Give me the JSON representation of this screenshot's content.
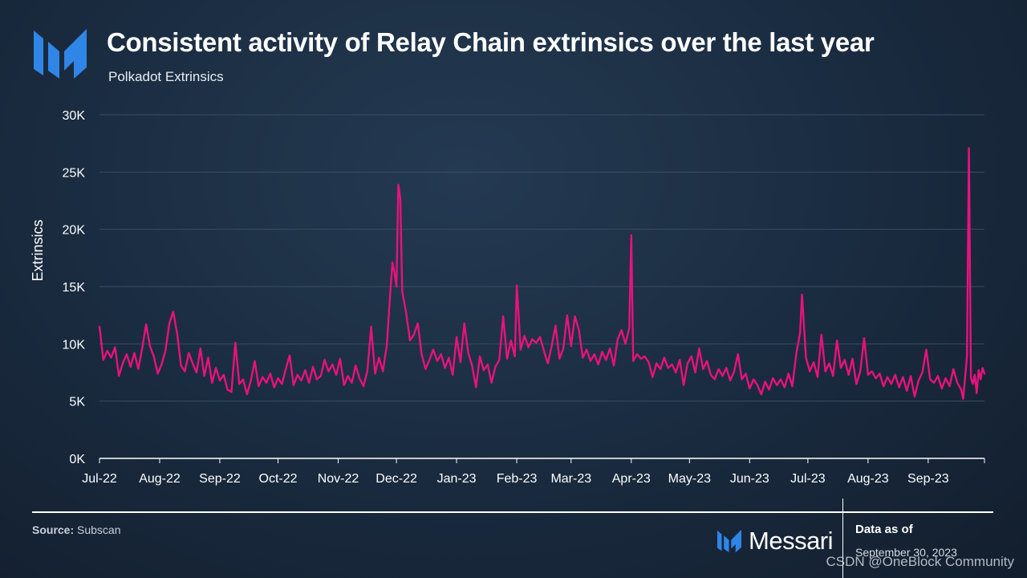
{
  "header": {
    "title": "Consistent activity of Relay Chain extrinsics over the last year",
    "subtitle": "Polkadot Extrinsics"
  },
  "footer": {
    "source_label": "Source:",
    "source_value": "Subscan",
    "brand": "Messari",
    "data_as_of_label": "Data as of",
    "data_as_of_date": "September 30, 2023",
    "watermark": "CSDN @OneBlock Community"
  },
  "colors": {
    "line": "#e8127c",
    "grid": "#3b4d62",
    "logo": "#2f86e6"
  },
  "chart_data": {
    "type": "line",
    "ylabel": "Extrinsics",
    "xlabel": "",
    "ylim": [
      0,
      30000
    ],
    "yticks": [
      0,
      5000,
      10000,
      15000,
      20000,
      25000,
      30000
    ],
    "ytick_labels": [
      "0K",
      "5K",
      "10K",
      "15K",
      "20K",
      "25K",
      "30K"
    ],
    "xlim": [
      "2022-07-01",
      "2023-09-30"
    ],
    "xtick_labels": [
      "Jul-22",
      "Aug-22",
      "Sep-22",
      "Oct-22",
      "Nov-22",
      "Dec-22",
      "Jan-23",
      "Feb-23",
      "Mar-23",
      "Apr-23",
      "May-23",
      "Jun-23",
      "Jul-23",
      "Aug-23",
      "Sep-23"
    ],
    "xtick_dates": [
      "2022-07-01",
      "2022-08-01",
      "2022-09-01",
      "2022-10-01",
      "2022-11-01",
      "2022-12-01",
      "2023-01-01",
      "2023-02-01",
      "2023-03-01",
      "2023-04-01",
      "2023-05-01",
      "2023-06-01",
      "2023-07-01",
      "2023-08-01",
      "2023-09-01"
    ],
    "grid": true,
    "series": [
      {
        "points": [
          [
            "2022-07-01",
            11500
          ],
          [
            "2022-07-03",
            8600
          ],
          [
            "2022-07-05",
            9400
          ],
          [
            "2022-07-07",
            8800
          ],
          [
            "2022-07-09",
            9700
          ],
          [
            "2022-07-11",
            7200
          ],
          [
            "2022-07-13",
            8300
          ],
          [
            "2022-07-15",
            9100
          ],
          [
            "2022-07-17",
            8000
          ],
          [
            "2022-07-19",
            9200
          ],
          [
            "2022-07-21",
            7800
          ],
          [
            "2022-07-23",
            9600
          ],
          [
            "2022-07-25",
            11700
          ],
          [
            "2022-07-27",
            9800
          ],
          [
            "2022-07-29",
            8900
          ],
          [
            "2022-07-31",
            7400
          ],
          [
            "2022-08-02",
            8200
          ],
          [
            "2022-08-04",
            9400
          ],
          [
            "2022-08-06",
            11800
          ],
          [
            "2022-08-08",
            12800
          ],
          [
            "2022-08-10",
            10900
          ],
          [
            "2022-08-12",
            8100
          ],
          [
            "2022-08-14",
            7600
          ],
          [
            "2022-08-16",
            9200
          ],
          [
            "2022-08-18",
            8300
          ],
          [
            "2022-08-20",
            7500
          ],
          [
            "2022-08-22",
            9600
          ],
          [
            "2022-08-24",
            7200
          ],
          [
            "2022-08-26",
            8800
          ],
          [
            "2022-08-28",
            6600
          ],
          [
            "2022-08-30",
            7900
          ],
          [
            "2022-09-01",
            6800
          ],
          [
            "2022-09-03",
            7300
          ],
          [
            "2022-09-05",
            6000
          ],
          [
            "2022-09-07",
            5800
          ],
          [
            "2022-09-09",
            10100
          ],
          [
            "2022-09-11",
            6500
          ],
          [
            "2022-09-13",
            6900
          ],
          [
            "2022-09-15",
            5600
          ],
          [
            "2022-09-17",
            6800
          ],
          [
            "2022-09-19",
            8500
          ],
          [
            "2022-09-21",
            6300
          ],
          [
            "2022-09-23",
            7100
          ],
          [
            "2022-09-25",
            6600
          ],
          [
            "2022-09-27",
            7400
          ],
          [
            "2022-09-29",
            6200
          ],
          [
            "2022-10-01",
            7000
          ],
          [
            "2022-10-03",
            6500
          ],
          [
            "2022-10-05",
            7800
          ],
          [
            "2022-10-07",
            9000
          ],
          [
            "2022-10-09",
            6400
          ],
          [
            "2022-10-11",
            7300
          ],
          [
            "2022-10-13",
            6800
          ],
          [
            "2022-10-15",
            7700
          ],
          [
            "2022-10-17",
            6600
          ],
          [
            "2022-10-19",
            8000
          ],
          [
            "2022-10-21",
            6900
          ],
          [
            "2022-10-23",
            7200
          ],
          [
            "2022-10-25",
            8600
          ],
          [
            "2022-10-27",
            7600
          ],
          [
            "2022-10-29",
            8200
          ],
          [
            "2022-10-31",
            7300
          ],
          [
            "2022-11-02",
            8700
          ],
          [
            "2022-11-04",
            6400
          ],
          [
            "2022-11-06",
            7200
          ],
          [
            "2022-11-08",
            6600
          ],
          [
            "2022-11-10",
            8100
          ],
          [
            "2022-11-12",
            7000
          ],
          [
            "2022-11-14",
            6300
          ],
          [
            "2022-11-16",
            7600
          ],
          [
            "2022-11-18",
            11500
          ],
          [
            "2022-11-20",
            7400
          ],
          [
            "2022-11-22",
            8800
          ],
          [
            "2022-11-24",
            7600
          ],
          [
            "2022-11-26",
            9800
          ],
          [
            "2022-11-28",
            14900
          ],
          [
            "2022-11-29",
            17100
          ],
          [
            "2022-11-30",
            16200
          ],
          [
            "2022-12-01",
            15000
          ],
          [
            "2022-12-02",
            23900
          ],
          [
            "2022-12-03",
            22700
          ],
          [
            "2022-12-04",
            14600
          ],
          [
            "2022-12-06",
            12700
          ],
          [
            "2022-12-08",
            10300
          ],
          [
            "2022-12-10",
            10800
          ],
          [
            "2022-12-12",
            11800
          ],
          [
            "2022-12-14",
            9100
          ],
          [
            "2022-12-16",
            7800
          ],
          [
            "2022-12-18",
            8600
          ],
          [
            "2022-12-20",
            9500
          ],
          [
            "2022-12-22",
            8500
          ],
          [
            "2022-12-24",
            9100
          ],
          [
            "2022-12-26",
            7900
          ],
          [
            "2022-12-28",
            8800
          ],
          [
            "2022-12-30",
            7300
          ],
          [
            "2023-01-01",
            10600
          ],
          [
            "2023-01-03",
            8400
          ],
          [
            "2023-01-05",
            11800
          ],
          [
            "2023-01-07",
            9200
          ],
          [
            "2023-01-09",
            8100
          ],
          [
            "2023-01-11",
            6200
          ],
          [
            "2023-01-13",
            8900
          ],
          [
            "2023-01-15",
            7700
          ],
          [
            "2023-01-17",
            8200
          ],
          [
            "2023-01-19",
            6600
          ],
          [
            "2023-01-21",
            8000
          ],
          [
            "2023-01-23",
            8600
          ],
          [
            "2023-01-25",
            12400
          ],
          [
            "2023-01-27",
            8700
          ],
          [
            "2023-01-29",
            10300
          ],
          [
            "2023-01-31",
            8900
          ],
          [
            "2023-02-01",
            15100
          ],
          [
            "2023-02-03",
            9500
          ],
          [
            "2023-02-05",
            10700
          ],
          [
            "2023-02-07",
            9700
          ],
          [
            "2023-02-09",
            10400
          ],
          [
            "2023-02-11",
            10100
          ],
          [
            "2023-02-13",
            10600
          ],
          [
            "2023-02-15",
            9400
          ],
          [
            "2023-02-17",
            8300
          ],
          [
            "2023-02-19",
            9800
          ],
          [
            "2023-02-21",
            11600
          ],
          [
            "2023-02-23",
            8700
          ],
          [
            "2023-02-25",
            9600
          ],
          [
            "2023-02-27",
            12500
          ],
          [
            "2023-03-01",
            9800
          ],
          [
            "2023-03-03",
            12400
          ],
          [
            "2023-03-05",
            11200
          ],
          [
            "2023-03-07",
            8800
          ],
          [
            "2023-03-09",
            9500
          ],
          [
            "2023-03-11",
            8500
          ],
          [
            "2023-03-13",
            9100
          ],
          [
            "2023-03-15",
            8200
          ],
          [
            "2023-03-17",
            9300
          ],
          [
            "2023-03-19",
            8600
          ],
          [
            "2023-03-21",
            9600
          ],
          [
            "2023-03-23",
            8100
          ],
          [
            "2023-03-25",
            10400
          ],
          [
            "2023-03-27",
            11200
          ],
          [
            "2023-03-29",
            10000
          ],
          [
            "2023-03-31",
            11400
          ],
          [
            "2023-04-01",
            19500
          ],
          [
            "2023-04-02",
            8500
          ],
          [
            "2023-04-04",
            9100
          ],
          [
            "2023-04-06",
            8700
          ],
          [
            "2023-04-08",
            8900
          ],
          [
            "2023-04-10",
            8400
          ],
          [
            "2023-04-12",
            7100
          ],
          [
            "2023-04-14",
            8300
          ],
          [
            "2023-04-16",
            7800
          ],
          [
            "2023-04-18",
            8800
          ],
          [
            "2023-04-20",
            7900
          ],
          [
            "2023-04-22",
            8200
          ],
          [
            "2023-04-24",
            7500
          ],
          [
            "2023-04-26",
            8600
          ],
          [
            "2023-04-28",
            6400
          ],
          [
            "2023-04-30",
            8300
          ],
          [
            "2023-05-02",
            8900
          ],
          [
            "2023-05-04",
            7500
          ],
          [
            "2023-05-06",
            9600
          ],
          [
            "2023-05-08",
            7800
          ],
          [
            "2023-05-10",
            8500
          ],
          [
            "2023-05-12",
            7300
          ],
          [
            "2023-05-14",
            6900
          ],
          [
            "2023-05-16",
            7800
          ],
          [
            "2023-05-18",
            7200
          ],
          [
            "2023-05-20",
            7900
          ],
          [
            "2023-05-22",
            6800
          ],
          [
            "2023-05-24",
            7600
          ],
          [
            "2023-05-26",
            9100
          ],
          [
            "2023-05-28",
            6900
          ],
          [
            "2023-05-30",
            7400
          ],
          [
            "2023-06-01",
            6100
          ],
          [
            "2023-06-03",
            6900
          ],
          [
            "2023-06-05",
            6400
          ],
          [
            "2023-06-07",
            5600
          ],
          [
            "2023-06-09",
            6700
          ],
          [
            "2023-06-11",
            6000
          ],
          [
            "2023-06-13",
            7000
          ],
          [
            "2023-06-15",
            6400
          ],
          [
            "2023-06-17",
            6900
          ],
          [
            "2023-06-19",
            6200
          ],
          [
            "2023-06-21",
            7400
          ],
          [
            "2023-06-23",
            6300
          ],
          [
            "2023-06-25",
            9100
          ],
          [
            "2023-06-27",
            11000
          ],
          [
            "2023-06-28",
            14300
          ],
          [
            "2023-06-30",
            8800
          ],
          [
            "2023-07-02",
            7600
          ],
          [
            "2023-07-04",
            8400
          ],
          [
            "2023-07-06",
            7100
          ],
          [
            "2023-07-08",
            10800
          ],
          [
            "2023-07-10",
            7600
          ],
          [
            "2023-07-12",
            8300
          ],
          [
            "2023-07-14",
            7200
          ],
          [
            "2023-07-16",
            10300
          ],
          [
            "2023-07-18",
            7900
          ],
          [
            "2023-07-20",
            8600
          ],
          [
            "2023-07-22",
            7300
          ],
          [
            "2023-07-24",
            8700
          ],
          [
            "2023-07-26",
            6500
          ],
          [
            "2023-07-28",
            7600
          ],
          [
            "2023-07-30",
            10500
          ],
          [
            "2023-08-01",
            7300
          ],
          [
            "2023-08-03",
            7600
          ],
          [
            "2023-08-05",
            7000
          ],
          [
            "2023-08-07",
            7400
          ],
          [
            "2023-08-09",
            6300
          ],
          [
            "2023-08-11",
            7100
          ],
          [
            "2023-08-13",
            6500
          ],
          [
            "2023-08-15",
            7300
          ],
          [
            "2023-08-17",
            6200
          ],
          [
            "2023-08-19",
            7100
          ],
          [
            "2023-08-21",
            5900
          ],
          [
            "2023-08-23",
            7200
          ],
          [
            "2023-08-25",
            5400
          ],
          [
            "2023-08-27",
            6800
          ],
          [
            "2023-08-29",
            7500
          ],
          [
            "2023-08-31",
            9500
          ],
          [
            "2023-09-02",
            6900
          ],
          [
            "2023-09-04",
            6600
          ],
          [
            "2023-09-06",
            7200
          ],
          [
            "2023-09-08",
            6100
          ],
          [
            "2023-09-10",
            7000
          ],
          [
            "2023-09-12",
            6300
          ],
          [
            "2023-09-14",
            7800
          ],
          [
            "2023-09-16",
            6600
          ],
          [
            "2023-09-18",
            6000
          ],
          [
            "2023-09-19",
            5200
          ],
          [
            "2023-09-21",
            8900
          ],
          [
            "2023-09-22",
            27100
          ],
          [
            "2023-09-23",
            7000
          ],
          [
            "2023-09-24",
            6500
          ],
          [
            "2023-09-25",
            7300
          ],
          [
            "2023-09-26",
            5700
          ],
          [
            "2023-09-27",
            7700
          ],
          [
            "2023-09-28",
            6900
          ],
          [
            "2023-09-29",
            7900
          ],
          [
            "2023-09-30",
            7400
          ]
        ]
      }
    ]
  }
}
